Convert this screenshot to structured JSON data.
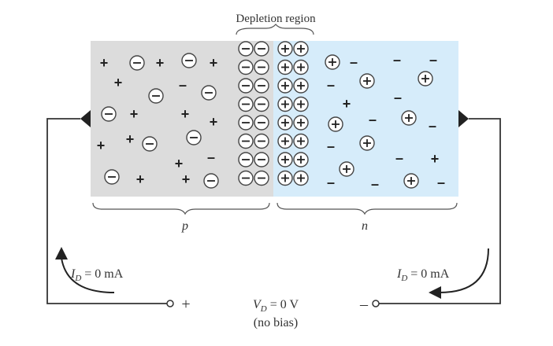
{
  "labels": {
    "depletion_region": "Depletion region",
    "p_label": "p",
    "n_label": "n",
    "id_left": "I_D = 0 mA",
    "id_right": "I_D = 0 mA",
    "vd": "V_D = 0 V",
    "no_bias": "(no bias)",
    "plus_terminal": "+",
    "minus_terminal": "–"
  },
  "colors": {
    "p_region": "#dcdcdc",
    "n_region": "#d6ecfa",
    "wire": "#333333"
  },
  "symbols": {
    "majority_hole": "+",
    "minority_electron": "–",
    "acceptor_ion": "⊖",
    "donor_ion": "⊕"
  }
}
